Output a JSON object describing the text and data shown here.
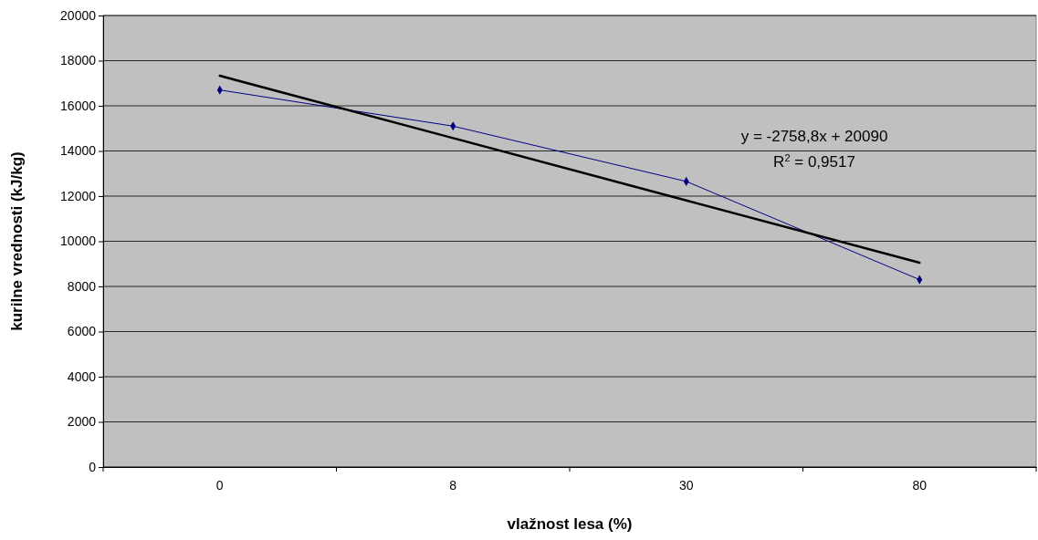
{
  "chart_data": {
    "type": "line",
    "xlabel": "vlažnost lesa (%)",
    "ylabel": "kurilne vrednosti (kJ/kg)",
    "categories": [
      "0",
      "8",
      "30",
      "80"
    ],
    "series": [
      {
        "color": "#000080",
        "values": [
          16700,
          15100,
          12650,
          8300
        ],
        "marker": "diamond"
      },
      {
        "color": "#000000",
        "values": [
          17330,
          14570,
          11810,
          9050
        ],
        "marker": "none"
      }
    ],
    "ylim": [
      0,
      20000
    ],
    "yticks": [
      0,
      2000,
      4000,
      6000,
      8000,
      10000,
      12000,
      14000,
      16000,
      18000,
      20000
    ],
    "grid": "y",
    "annotations": [
      "y = -2758,8x + 20090",
      "R$^{2}$ = 0,9517"
    ]
  }
}
